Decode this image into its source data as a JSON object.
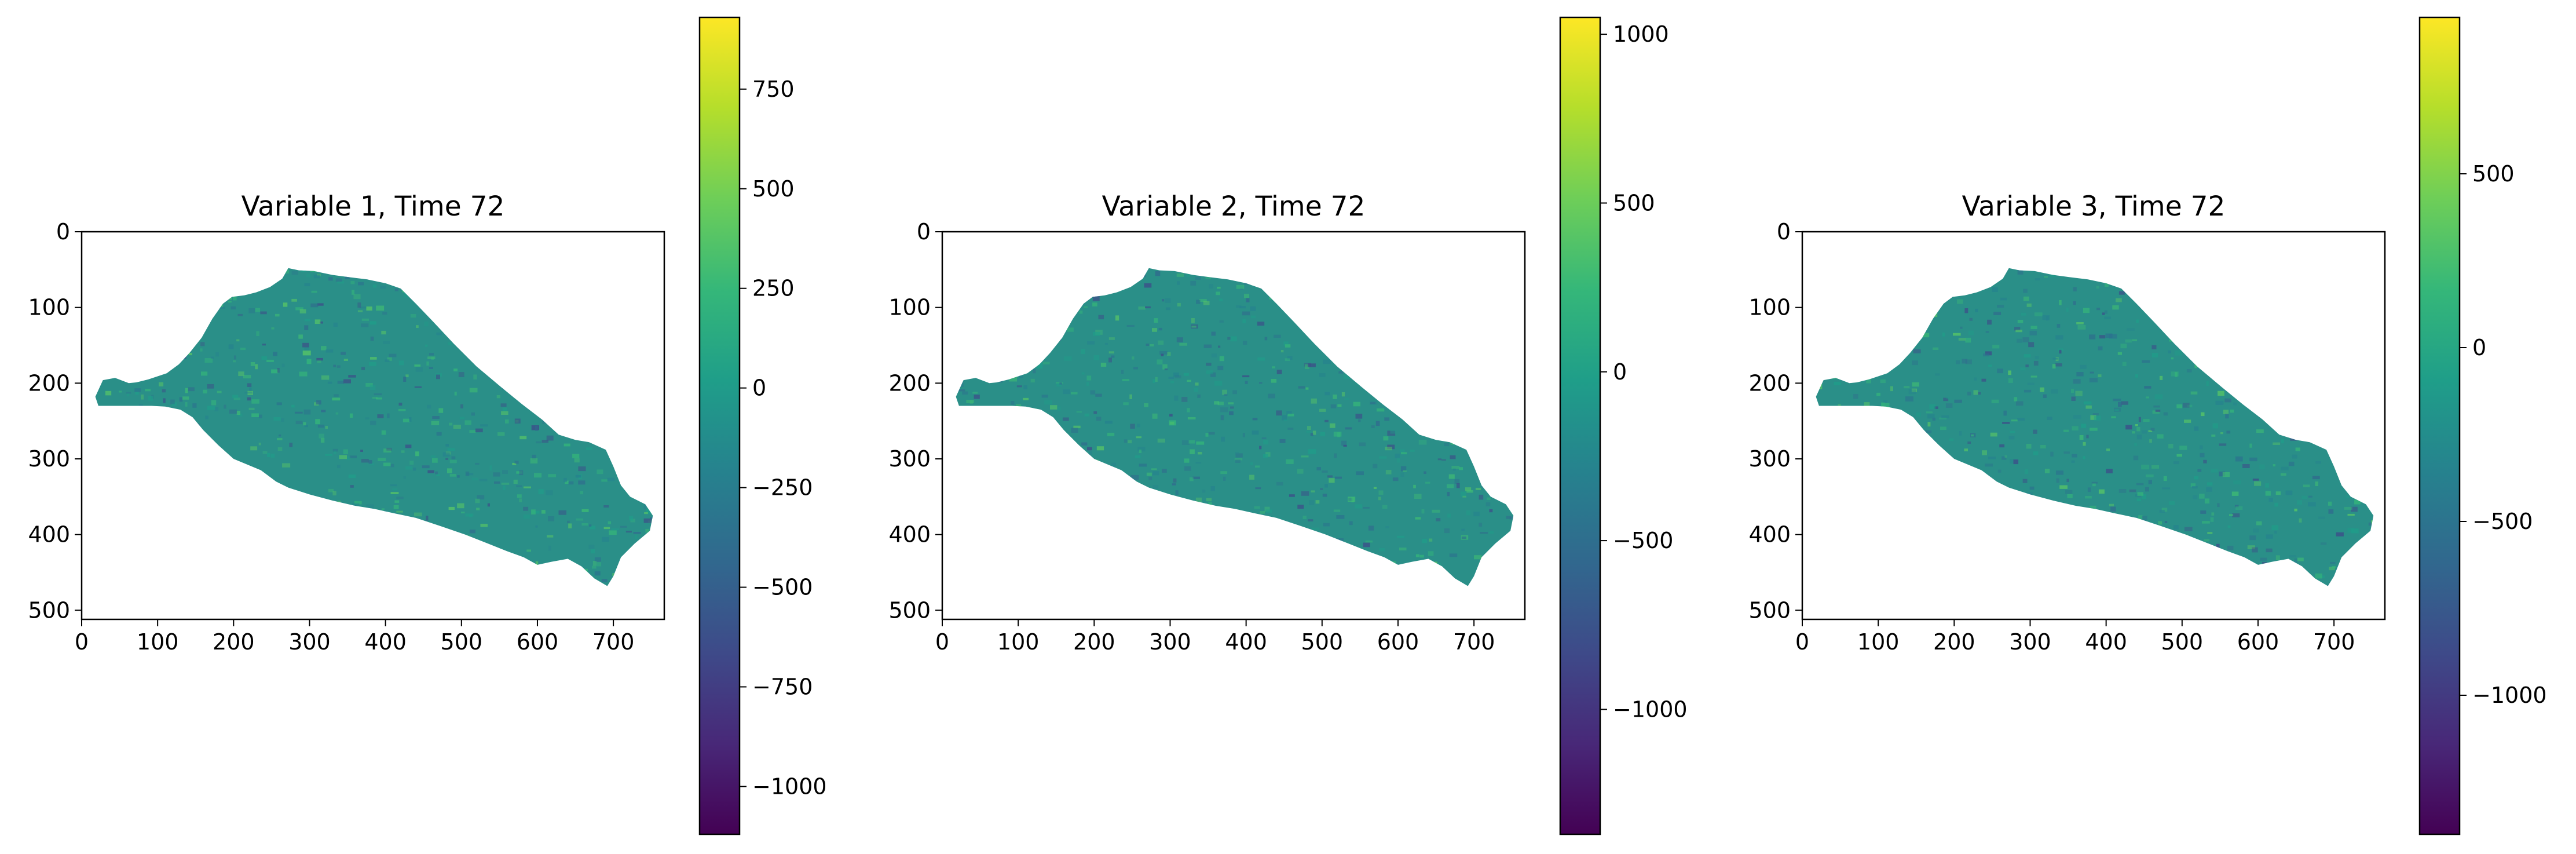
{
  "colors": {
    "viridis": [
      "#440154",
      "#482878",
      "#3e4a89",
      "#31688e",
      "#26828e",
      "#1f9e89",
      "#35b779",
      "#6ece58",
      "#b5de2b",
      "#fde725"
    ],
    "land_base": "#2a8f88",
    "axis": "#000000",
    "background": "#ffffff"
  },
  "chart_data": [
    {
      "type": "heatmap",
      "title": "Variable 1, Time 72",
      "xlim": [
        0,
        767
      ],
      "ylim": [
        512,
        0
      ],
      "xticks": [
        0,
        100,
        200,
        300,
        400,
        500,
        600,
        700
      ],
      "xtick_labels": [
        "0",
        "100",
        "200",
        "300",
        "400",
        "500",
        "600",
        "700"
      ],
      "yticks": [
        0,
        100,
        200,
        300,
        400,
        500
      ],
      "ytick_labels": [
        "0",
        "100",
        "200",
        "300",
        "400",
        "500"
      ],
      "colorbar": {
        "min": -1120,
        "max": 930,
        "ticks": [
          750,
          500,
          250,
          0,
          -250,
          -500,
          -750,
          -1000
        ],
        "tick_labels": [
          "750",
          "500",
          "250",
          "0",
          "−250",
          "−500",
          "−750",
          "−1000"
        ]
      }
    },
    {
      "type": "heatmap",
      "title": "Variable 2, Time 72",
      "xlim": [
        0,
        767
      ],
      "ylim": [
        512,
        0
      ],
      "xticks": [
        0,
        100,
        200,
        300,
        400,
        500,
        600,
        700
      ],
      "xtick_labels": [
        "0",
        "100",
        "200",
        "300",
        "400",
        "500",
        "600",
        "700"
      ],
      "yticks": [
        0,
        100,
        200,
        300,
        400,
        500
      ],
      "ytick_labels": [
        "0",
        "100",
        "200",
        "300",
        "400",
        "500"
      ],
      "colorbar": {
        "min": -1370,
        "max": 1050,
        "ticks": [
          1000,
          500,
          0,
          -500,
          -1000
        ],
        "tick_labels": [
          "1000",
          "500",
          "0",
          "−500",
          "−1000"
        ]
      }
    },
    {
      "type": "heatmap",
      "title": "Variable 3, Time 72",
      "xlim": [
        0,
        767
      ],
      "ylim": [
        512,
        0
      ],
      "xticks": [
        0,
        100,
        200,
        300,
        400,
        500,
        600,
        700
      ],
      "xtick_labels": [
        "0",
        "100",
        "200",
        "300",
        "400",
        "500",
        "600",
        "700"
      ],
      "yticks": [
        0,
        100,
        200,
        300,
        400,
        500
      ],
      "ytick_labels": [
        "0",
        "100",
        "200",
        "300",
        "400",
        "500"
      ],
      "colorbar": {
        "min": -1400,
        "max": 950,
        "ticks": [
          500,
          0,
          -500,
          -1000
        ],
        "tick_labels": [
          "500",
          "0",
          "−500",
          "−1000"
        ]
      }
    }
  ]
}
